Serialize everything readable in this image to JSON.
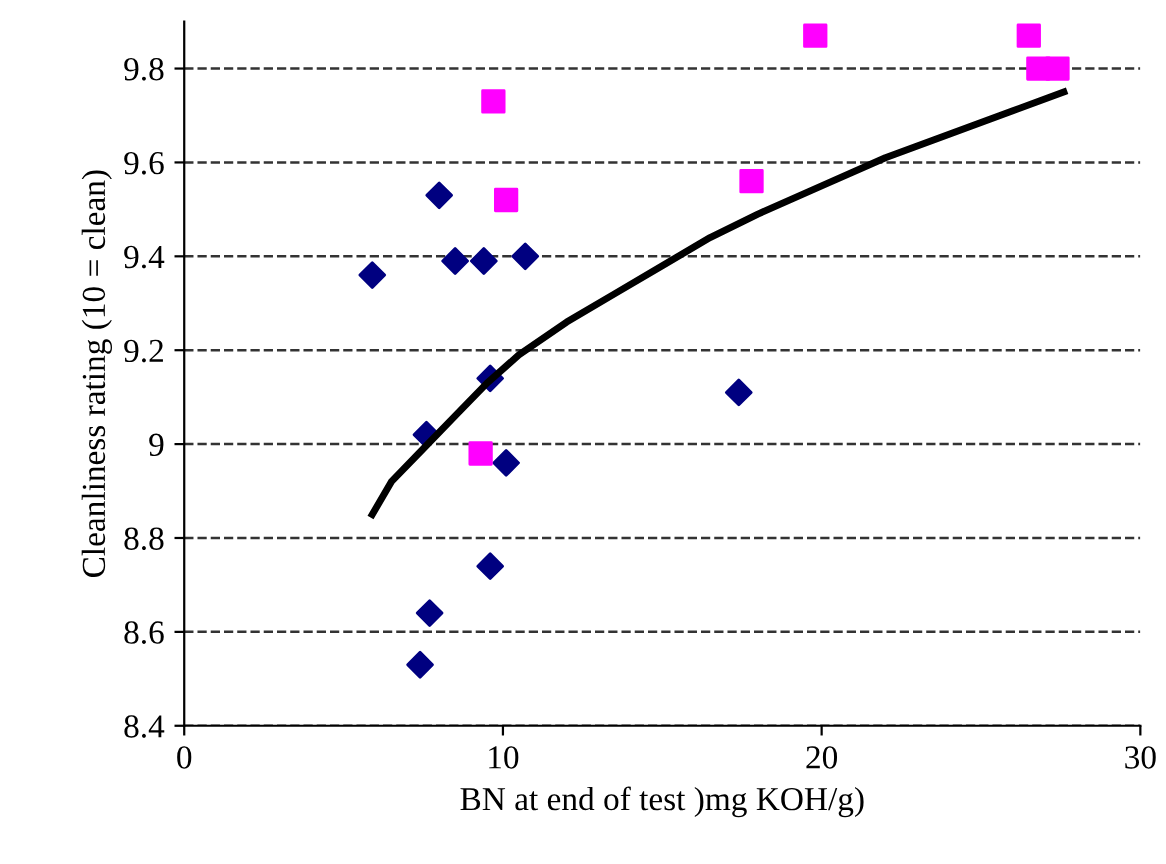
{
  "chart_data": {
    "type": "scatter",
    "xlabel": "BN at end of test )mg KOH/g)",
    "ylabel": "Cleanliness rating (10 = clean)",
    "xlim": [
      0,
      30
    ],
    "xticks": [
      0,
      10,
      20,
      30
    ],
    "ylim": [
      8.4,
      9.9
    ],
    "yticks": [
      {
        "value": 8.4,
        "label": "8.4"
      },
      {
        "value": 8.6,
        "label": "8.6"
      },
      {
        "value": 8.8,
        "label": "8.8"
      },
      {
        "value": 9.0,
        "label": "9"
      },
      {
        "value": 9.2,
        "label": "9.2"
      },
      {
        "value": 9.4,
        "label": "9.4"
      },
      {
        "value": 9.6,
        "label": "9.6"
      },
      {
        "value": 9.8,
        "label": "9.8"
      }
    ],
    "grid": "y",
    "series": [
      {
        "marker": "diamond",
        "color": "#000080",
        "x": [
          5.9,
          8.0,
          8.5,
          9.4,
          10.7,
          9.6,
          7.6,
          10.1,
          9.6,
          7.7,
          7.4,
          17.4
        ],
        "values": [
          9.36,
          9.53,
          9.39,
          9.39,
          9.4,
          9.14,
          9.02,
          8.96,
          8.74,
          8.64,
          8.53,
          9.11
        ]
      },
      {
        "marker": "square",
        "color": "#ff00ff",
        "x": [
          9.7,
          10.1,
          9.3,
          17.8,
          19.8,
          26.5,
          26.8,
          27.4
        ],
        "values": [
          9.73,
          9.52,
          8.98,
          9.56,
          9.87,
          9.87,
          9.8,
          9.8
        ]
      },
      {
        "type": "line",
        "marker": "none",
        "line_style": "solid",
        "color": "#000000",
        "x": [
          5.9,
          6.5,
          7.5,
          8.5,
          9.5,
          10.5,
          12,
          13.5,
          15,
          16.5,
          18,
          20,
          22,
          24,
          26,
          27.6
        ],
        "values": [
          8.85,
          8.92,
          8.99,
          9.06,
          9.13,
          9.19,
          9.26,
          9.32,
          9.38,
          9.44,
          9.49,
          9.55,
          9.61,
          9.66,
          9.71,
          9.75
        ]
      }
    ]
  }
}
